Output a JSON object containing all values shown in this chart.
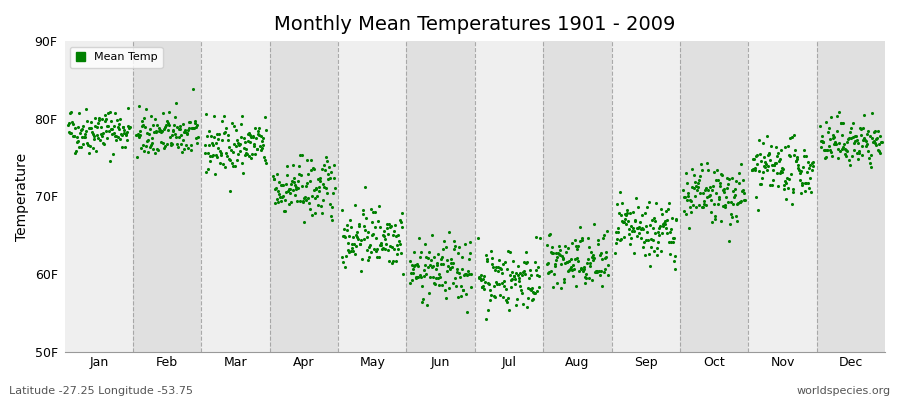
{
  "title": "Monthly Mean Temperatures 1901 - 2009",
  "ylabel": "Temperature",
  "xlabel_months": [
    "Jan",
    "Feb",
    "Mar",
    "Apr",
    "May",
    "Jun",
    "Jul",
    "Aug",
    "Sep",
    "Oct",
    "Nov",
    "Dec"
  ],
  "ytick_labels": [
    "50F",
    "60F",
    "70F",
    "80F",
    "90F"
  ],
  "ytick_values": [
    50,
    60,
    70,
    80,
    90
  ],
  "ylim": [
    50,
    90
  ],
  "n_years": 109,
  "start_year": 1901,
  "end_year": 2009,
  "dot_color": "#008000",
  "bg_color_light": "#EFEFEF",
  "bg_color_dark": "#E0E0E0",
  "mean_temps_F": [
    78.5,
    78.0,
    76.5,
    71.0,
    65.0,
    60.5,
    59.5,
    61.5,
    65.5,
    70.0,
    73.5,
    77.0
  ],
  "std_temps_F": [
    1.5,
    1.5,
    1.8,
    2.0,
    2.0,
    2.0,
    2.0,
    2.0,
    2.0,
    2.0,
    1.8,
    1.5
  ],
  "subtitle_left": "Latitude -27.25 Longitude -53.75",
  "subtitle_right": "worldspecies.org",
  "legend_label": "Mean Temp",
  "title_fontsize": 14,
  "axis_label_fontsize": 10,
  "tick_fontsize": 9,
  "subtitle_fontsize": 8
}
